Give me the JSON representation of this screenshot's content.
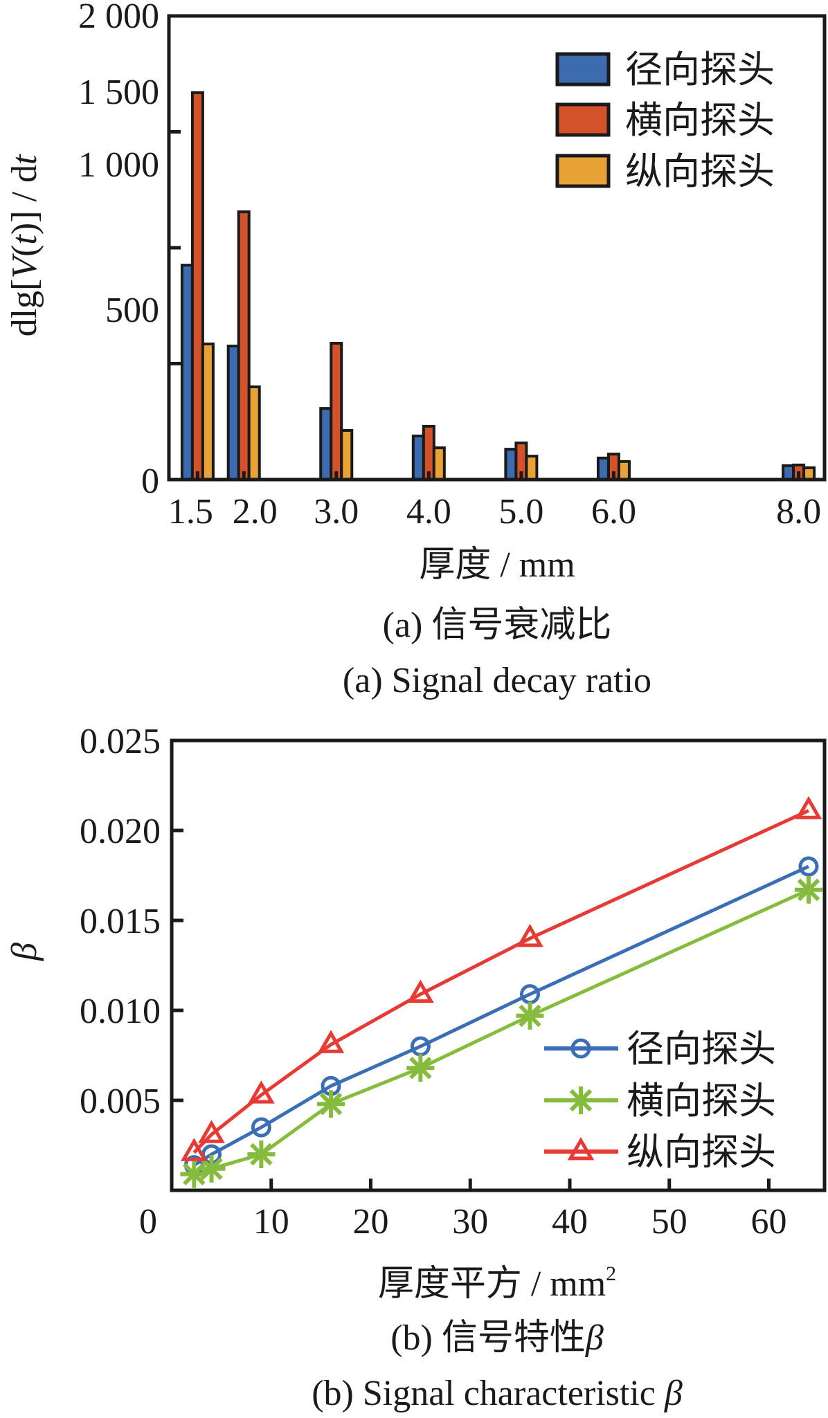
{
  "chart_data": [
    {
      "type": "bar",
      "title": "",
      "xlabel": "厚度 / mm",
      "ylabel_parts": [
        "dlg[",
        "V",
        "(",
        "t",
        ")] / d",
        "t"
      ],
      "ylabel": "dlg[V(t)] / dt",
      "ylim": [
        0,
        2000
      ],
      "x_range": [
        1.19,
        8.28
      ],
      "categories": [
        "1.5",
        "2.0",
        "3.0",
        "4.0",
        "5.0",
        "6.0",
        "8.0"
      ],
      "category_values": [
        1.5,
        2.0,
        3.0,
        4.0,
        5.0,
        6.0,
        8.0
      ],
      "y_ticks": [
        2000,
        1500,
        1000,
        500,
        0
      ],
      "y_tick_labels": [
        "2 000",
        "1 500",
        "1 000",
        "500",
        "0"
      ],
      "y_tick_marks": [
        1500,
        1000,
        500
      ],
      "legend_position": "top-right",
      "series": [
        {
          "name": "径向探头",
          "color": "#3C6BAF",
          "values": [
            925,
            576,
            307,
            188,
            131,
            93,
            60
          ]
        },
        {
          "name": "横向探头",
          "color": "#D4522A",
          "values": [
            1669,
            1155,
            588,
            230,
            158,
            110,
            63
          ]
        },
        {
          "name": "纵向探头",
          "color": "#E8A236",
          "values": [
            585,
            400,
            212,
            137,
            101,
            78,
            51
          ]
        }
      ],
      "caption_cn": "(a)  信号衰减比",
      "caption_en": "(a)  Signal decay ratio"
    },
    {
      "type": "line",
      "title": "",
      "xlabel": "厚度平方 / mm",
      "xlabel_sup": "2",
      "ylabel": "β",
      "xlim": [
        0,
        65.6
      ],
      "ylim": [
        0,
        0.025
      ],
      "x_ticks": [
        0,
        10,
        20,
        30,
        40,
        50,
        60
      ],
      "x_tick_labels": [
        "0",
        "10",
        "20",
        "30",
        "40",
        "50",
        "60"
      ],
      "y_ticks": [
        0.025,
        0.02,
        0.015,
        0.01,
        0.005
      ],
      "y_tick_labels": [
        "0.025",
        "0.020",
        "0.015",
        "0.010",
        "0.005"
      ],
      "legend_position": "bottom-right",
      "x": [
        2.25,
        4,
        9,
        16,
        25,
        36,
        64
      ],
      "series": [
        {
          "name": "径向探头",
          "color": "#3A6FB5",
          "marker": "circle",
          "values": [
            0.0014,
            0.002,
            0.0035,
            0.0058,
            0.008,
            0.0109,
            0.018
          ]
        },
        {
          "name": "横向探头",
          "color": "#86BC3E",
          "marker": "asterisk",
          "values": [
            0.0009,
            0.0012,
            0.002,
            0.0048,
            0.0068,
            0.0097,
            0.0167
          ]
        },
        {
          "name": "纵向探头",
          "color": "#E83A35",
          "marker": "triangle",
          "values": [
            0.0021,
            0.0031,
            0.0053,
            0.0081,
            0.0109,
            0.014,
            0.0211
          ]
        }
      ],
      "caption_cn": "(b)  信号特性",
      "caption_cn_symbol": "β",
      "caption_en": "(b)  Signal characteristic ",
      "caption_en_symbol": "β"
    }
  ]
}
